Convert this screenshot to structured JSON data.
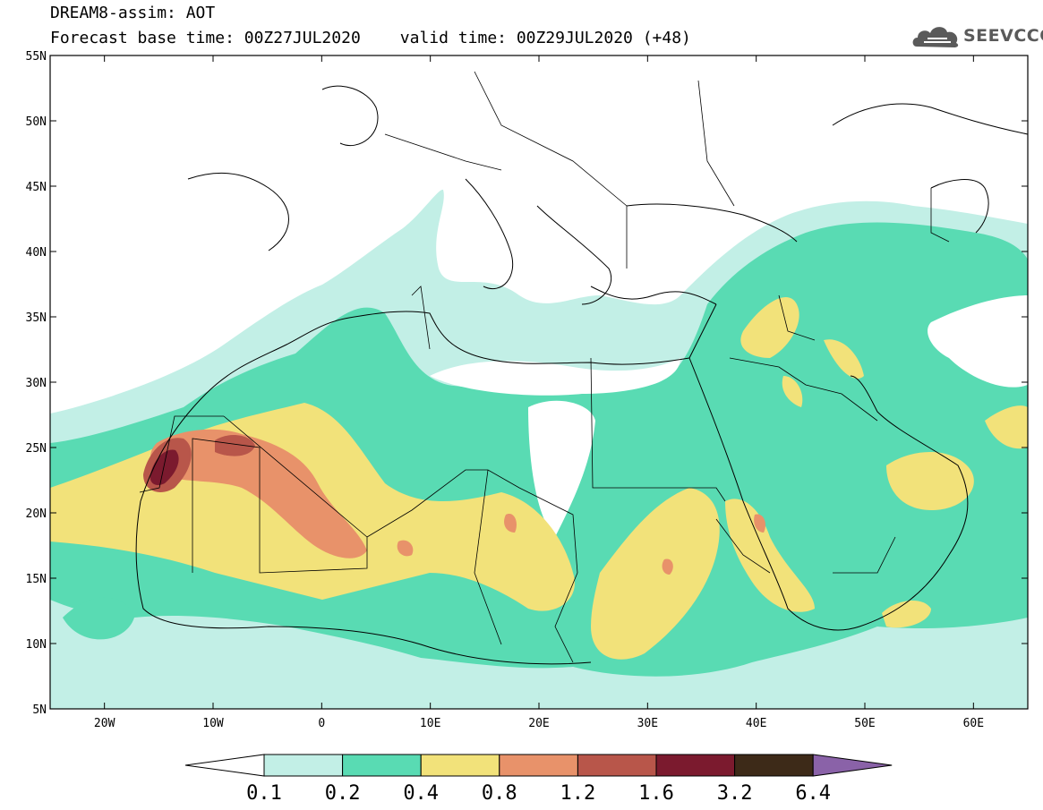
{
  "header": {
    "line1": "DREAM8-assim: AOT",
    "base_time": "Forecast base time: 00Z27JUL2020",
    "valid_time": "valid time: 00Z29JUL2020 (+48)"
  },
  "logo": {
    "name": "cloud-logo-icon",
    "text": "SEEVCCC"
  },
  "map": {
    "lon_range": [
      -25,
      65
    ],
    "lat_range": [
      5,
      55
    ],
    "lat_ticks": [
      {
        "value": 55,
        "label": "55N"
      },
      {
        "value": 50,
        "label": "50N"
      },
      {
        "value": 45,
        "label": "45N"
      },
      {
        "value": 40,
        "label": "40N"
      },
      {
        "value": 35,
        "label": "35N"
      },
      {
        "value": 30,
        "label": "30N"
      },
      {
        "value": 25,
        "label": "25N"
      },
      {
        "value": 20,
        "label": "20N"
      },
      {
        "value": 15,
        "label": "15N"
      },
      {
        "value": 10,
        "label": "10N"
      },
      {
        "value": 5,
        "label": "5N"
      }
    ],
    "lon_ticks": [
      {
        "value": -20,
        "label": "20W"
      },
      {
        "value": -10,
        "label": "10W"
      },
      {
        "value": 0,
        "label": "0"
      },
      {
        "value": 10,
        "label": "10E"
      },
      {
        "value": 20,
        "label": "20E"
      },
      {
        "value": 30,
        "label": "30E"
      },
      {
        "value": 40,
        "label": "40E"
      },
      {
        "value": 50,
        "label": "50E"
      },
      {
        "value": 60,
        "label": "60E"
      }
    ],
    "colors": {
      "aot_0.1_0.2": "#c2efe6",
      "aot_0.2_0.4": "#59dbb3",
      "aot_0.4_0.8": "#f2e27a",
      "aot_0.8_1.2": "#e8926a",
      "aot_1.2_1.6": "#b8564a",
      "aot_1.6_3.2": "#7b1a2e",
      "aot_3.2_6.4": "#3d2a18",
      "aot_above_6.4": "#8a62a8"
    }
  },
  "colorbar": {
    "labels": [
      "0.1",
      "0.2",
      "0.4",
      "0.8",
      "1.2",
      "1.6",
      "3.2",
      "6.4"
    ],
    "colors": [
      "#c2efe6",
      "#59dbb3",
      "#f2e27a",
      "#e8926a",
      "#b8564a",
      "#7b1a2e",
      "#3d2a18"
    ],
    "below_color": "#ffffff",
    "above_color": "#8a62a8"
  }
}
